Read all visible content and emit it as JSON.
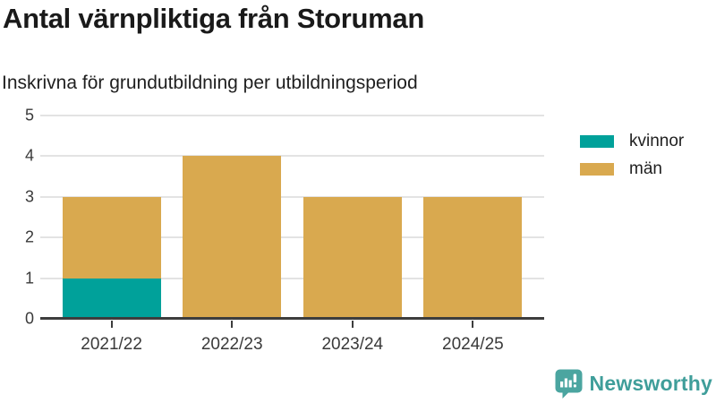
{
  "chart_data": {
    "type": "bar",
    "stacked": true,
    "title": "Antal värnpliktiga från Storuman",
    "subtitle": "Inskrivna för grundutbildning per utbildningsperiod",
    "categories": [
      "2021/22",
      "2022/23",
      "2023/24",
      "2024/25"
    ],
    "series": [
      {
        "name": "kvinnor",
        "color": "#00a19a",
        "values": [
          1,
          0,
          0,
          0
        ]
      },
      {
        "name": "män",
        "color": "#d9a94f",
        "values": [
          2,
          4,
          3,
          3
        ]
      }
    ],
    "totals": [
      3,
      4,
      3,
      3
    ],
    "xlabel": "",
    "ylabel": "",
    "ylim": [
      0,
      5
    ],
    "yticks": [
      0,
      1,
      2,
      3,
      4,
      5
    ],
    "grid": "horizontal",
    "legend_position": "right"
  },
  "colors": {
    "grid": "#e3e3e3",
    "axis_line": "#3d3d3d",
    "tick_label": "#3a3a3a",
    "title_text": "#1a1a1a",
    "subtitle_text": "#1f1f1f",
    "kvinnor": "#00a19a",
    "man": "#d9a94f",
    "brand_teal": "#3f9e9a",
    "logo_icon": "#4ba5a0"
  },
  "footer": {
    "brand": "Newsworthy"
  }
}
